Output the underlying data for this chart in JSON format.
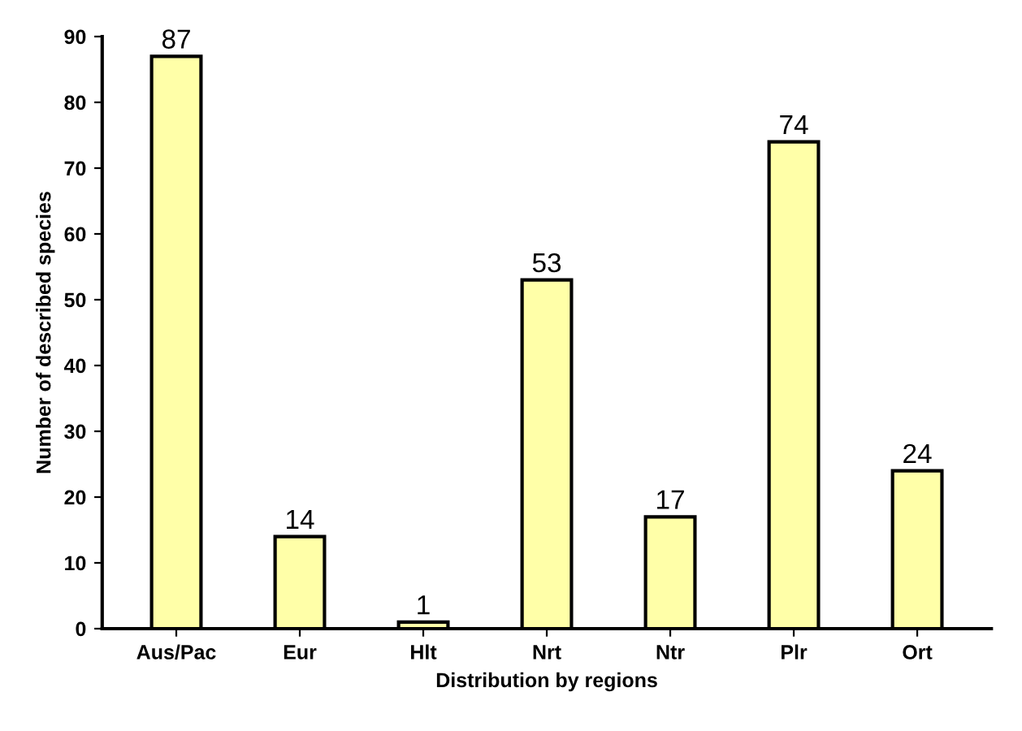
{
  "chart_data": {
    "type": "bar",
    "xlabel": "Distribution by regions",
    "ylabel": "Number of described species",
    "categories": [
      "Aus/Pac",
      "Eur",
      "Hlt",
      "Nrt",
      "Ntr",
      "Plr",
      "Ort"
    ],
    "values": [
      87,
      14,
      1,
      53,
      17,
      74,
      24
    ],
    "color": "#ffffa8",
    "ylim": [
      0,
      90
    ],
    "yticks": [
      0,
      10,
      20,
      30,
      40,
      50,
      60,
      70,
      80,
      90
    ],
    "data_labels": true,
    "grid": false
  }
}
